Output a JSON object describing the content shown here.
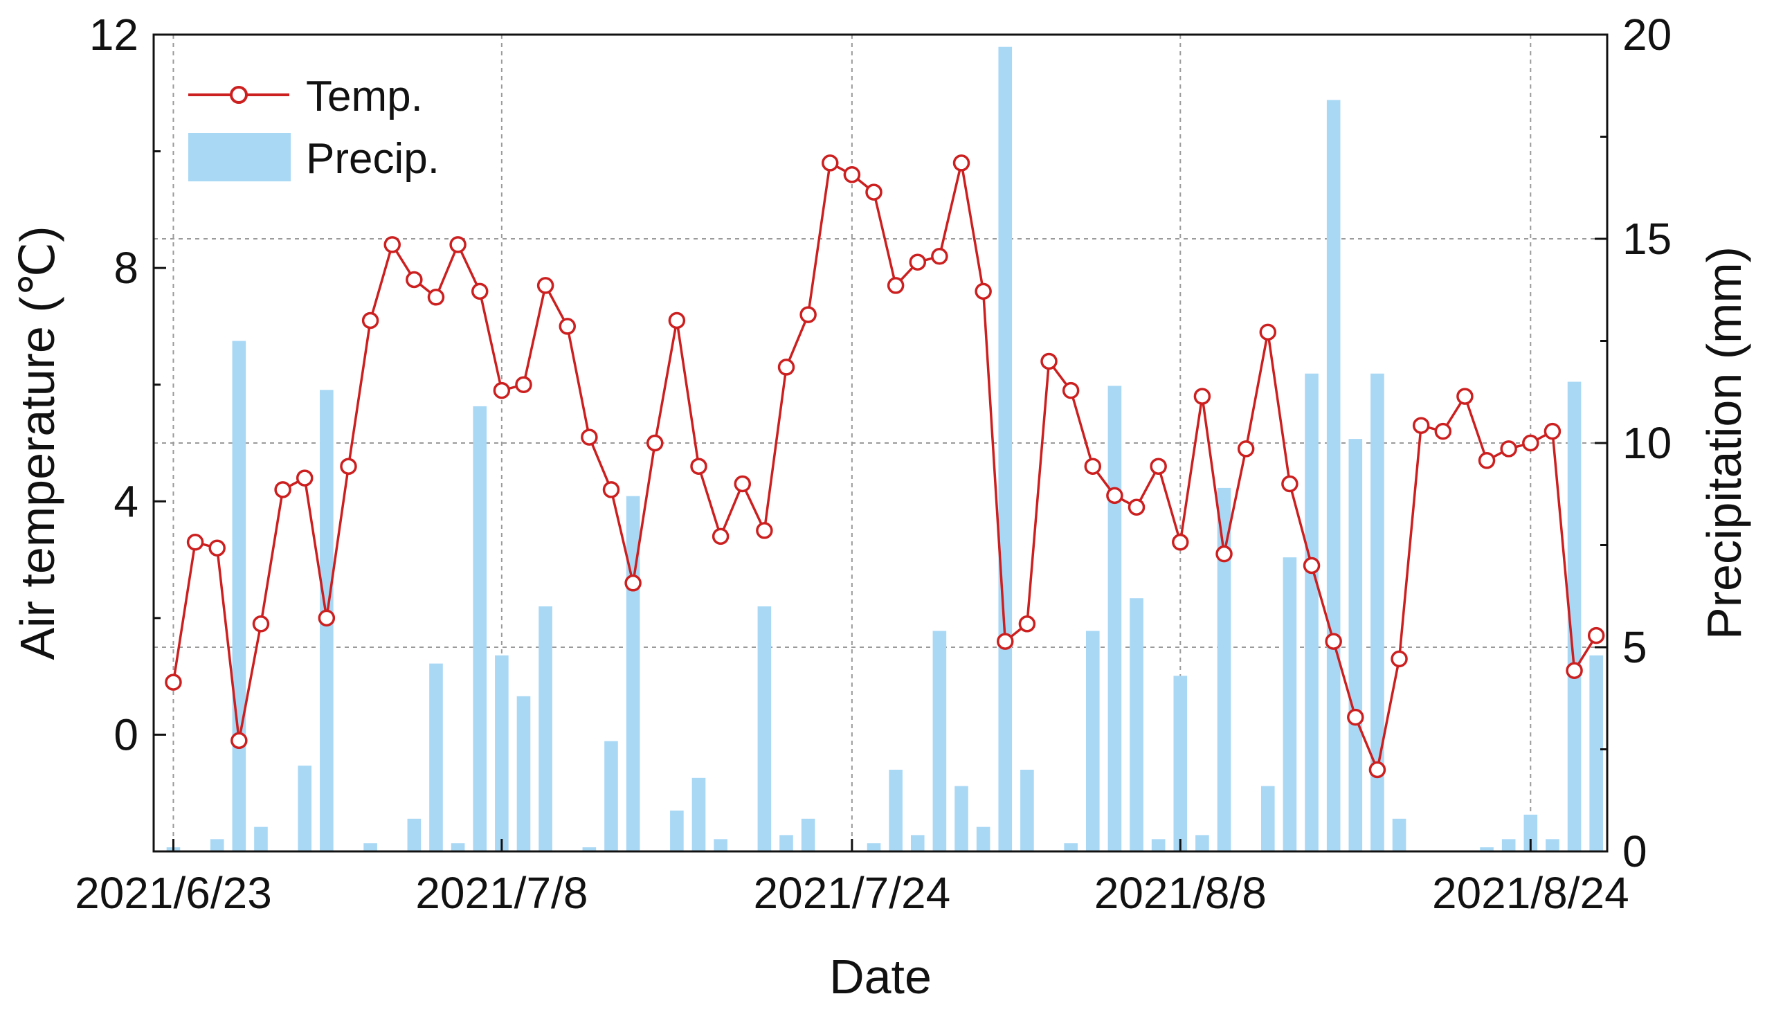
{
  "chart_data": {
    "type": "bar+line",
    "xlabel": "Date",
    "ylabel_left": "Air temperature (℃)",
    "ylabel_right": "Precipitation (mm)",
    "x_tick_labels": [
      "2021/6/23",
      "2021/7/8",
      "2021/7/24",
      "2021/8/8",
      "2021/8/24"
    ],
    "x_tick_day_index": [
      0,
      15,
      31,
      46,
      62
    ],
    "xlim_day_index": [
      -0.9,
      65.5
    ],
    "ylim_left": [
      -2,
      12
    ],
    "yticks_left": [
      0,
      4,
      8,
      12
    ],
    "ylim_right": [
      0,
      20
    ],
    "yticks_right": [
      0,
      5,
      10,
      15,
      20
    ],
    "grid": "dashed",
    "legend_position": "top-left",
    "series": [
      {
        "name": "Temp.",
        "kind": "line",
        "axis": "left",
        "color": "#cc1f1f",
        "marker": "open-circle",
        "values": [
          0.9,
          3.3,
          3.2,
          -0.1,
          1.9,
          4.2,
          4.4,
          2.0,
          4.6,
          7.1,
          8.4,
          7.8,
          7.5,
          8.4,
          7.6,
          5.9,
          6.0,
          7.7,
          7.0,
          5.1,
          4.2,
          2.6,
          5.0,
          7.1,
          4.6,
          3.4,
          4.3,
          3.5,
          6.3,
          7.2,
          9.8,
          9.6,
          9.3,
          7.7,
          8.1,
          8.2,
          9.8,
          7.6,
          1.6,
          1.9,
          6.4,
          5.9,
          4.6,
          4.1,
          3.9,
          4.6,
          3.3,
          5.8,
          3.1,
          4.9,
          6.9,
          4.3,
          2.9,
          1.6,
          0.3,
          -0.6,
          1.3,
          5.3,
          5.2,
          5.8,
          4.7,
          4.9,
          5.0,
          5.2,
          1.1,
          1.7
        ]
      },
      {
        "name": "Precip.",
        "kind": "bar",
        "axis": "right",
        "color": "#a9d8f5",
        "values": [
          0.1,
          0.0,
          0.3,
          12.5,
          0.6,
          0.0,
          2.1,
          11.3,
          0.0,
          0.2,
          0.0,
          0.8,
          4.6,
          0.2,
          10.9,
          4.8,
          3.8,
          6.0,
          0.0,
          0.1,
          2.7,
          8.7,
          0.0,
          1.0,
          1.8,
          0.3,
          0.0,
          6.0,
          0.4,
          0.8,
          0.0,
          0.0,
          0.2,
          2.0,
          0.4,
          5.4,
          1.6,
          0.6,
          19.7,
          2.0,
          0.0,
          0.2,
          5.4,
          11.4,
          6.2,
          0.3,
          4.3,
          0.4,
          8.9,
          0.0,
          1.6,
          7.2,
          11.7,
          18.4,
          10.1,
          11.7,
          0.8,
          0.0,
          0.0,
          0.0,
          0.1,
          0.3,
          0.9,
          0.3,
          11.5,
          4.8
        ]
      }
    ]
  }
}
